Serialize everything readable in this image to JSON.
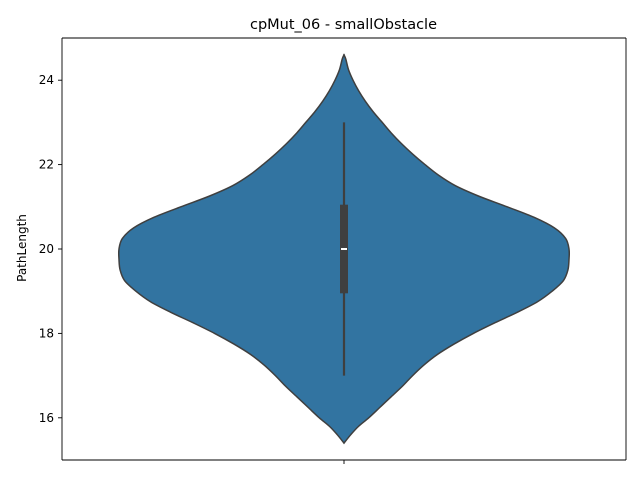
{
  "chart_data": {
    "type": "violin",
    "title": "cpMut_06 - smallObstacle",
    "xlabel": "",
    "ylabel": "PathLength",
    "ylim": [
      15.0,
      25.0
    ],
    "yticks": [
      16,
      18,
      20,
      22,
      24
    ],
    "ytick_labels": [
      "16",
      "18",
      "20",
      "22",
      "24"
    ],
    "grid": false,
    "legend": "none",
    "colors": {
      "violin": "#3274a1",
      "outline": "#3f3f3f",
      "box": "#3f3f3f",
      "median": "#ffffff"
    },
    "violin": {
      "density": [
        {
          "y": 15.4,
          "w": 0.0
        },
        {
          "y": 15.6,
          "w": 0.03
        },
        {
          "y": 15.8,
          "w": 0.065
        },
        {
          "y": 16.0,
          "w": 0.11
        },
        {
          "y": 16.25,
          "w": 0.16
        },
        {
          "y": 16.5,
          "w": 0.21
        },
        {
          "y": 16.75,
          "w": 0.26
        },
        {
          "y": 17.0,
          "w": 0.305
        },
        {
          "y": 17.25,
          "w": 0.355
        },
        {
          "y": 17.5,
          "w": 0.415
        },
        {
          "y": 17.75,
          "w": 0.49
        },
        {
          "y": 18.0,
          "w": 0.575
        },
        {
          "y": 18.25,
          "w": 0.67
        },
        {
          "y": 18.5,
          "w": 0.77
        },
        {
          "y": 18.75,
          "w": 0.86
        },
        {
          "y": 19.0,
          "w": 0.925
        },
        {
          "y": 19.25,
          "w": 0.975
        },
        {
          "y": 19.5,
          "w": 0.995
        },
        {
          "y": 19.75,
          "w": 1.0
        },
        {
          "y": 20.0,
          "w": 1.0
        },
        {
          "y": 20.25,
          "w": 0.985
        },
        {
          "y": 20.5,
          "w": 0.935
        },
        {
          "y": 20.75,
          "w": 0.845
        },
        {
          "y": 21.0,
          "w": 0.725
        },
        {
          "y": 21.25,
          "w": 0.6
        },
        {
          "y": 21.5,
          "w": 0.495
        },
        {
          "y": 21.75,
          "w": 0.42
        },
        {
          "y": 22.0,
          "w": 0.36
        },
        {
          "y": 22.25,
          "w": 0.305
        },
        {
          "y": 22.5,
          "w": 0.255
        },
        {
          "y": 22.75,
          "w": 0.21
        },
        {
          "y": 23.0,
          "w": 0.17
        },
        {
          "y": 23.25,
          "w": 0.13
        },
        {
          "y": 23.5,
          "w": 0.095
        },
        {
          "y": 23.75,
          "w": 0.065
        },
        {
          "y": 24.0,
          "w": 0.04
        },
        {
          "y": 24.25,
          "w": 0.02
        },
        {
          "y": 24.5,
          "w": 0.008
        },
        {
          "y": 24.6,
          "w": 0.0
        }
      ],
      "whisker_low": 17.0,
      "whisker_high": 23.0,
      "q1": 18.95,
      "median": 20.0,
      "q3": 21.05
    }
  }
}
